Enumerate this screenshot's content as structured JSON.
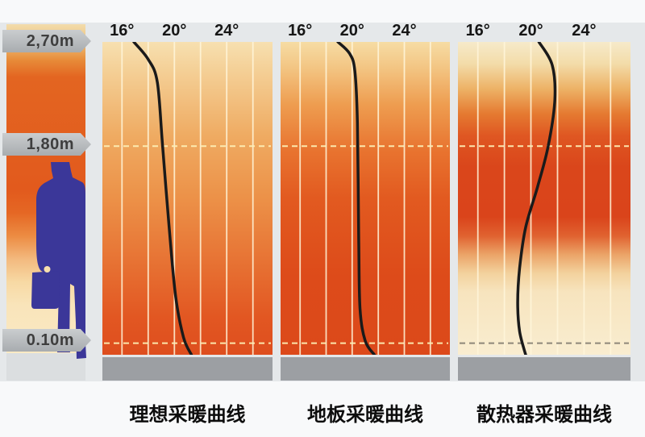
{
  "axis": {
    "tick_temps_c": [
      16,
      18,
      20,
      22,
      24,
      26
    ],
    "labeled_ticks": [
      {
        "t_c": 16,
        "label": "16°"
      },
      {
        "t_c": 20,
        "label": "20°"
      },
      {
        "t_c": 24,
        "label": "24°"
      }
    ],
    "xlim_c": [
      14.5,
      27.5
    ],
    "height_range_m": [
      0,
      2.7
    ]
  },
  "height_markers": [
    {
      "label": "2,70m",
      "height_m": 2.7
    },
    {
      "label": "1,80m",
      "height_m": 1.8
    },
    {
      "label": "0.10m",
      "height_m": 0.1
    }
  ],
  "person": {
    "icon": "person-with-briefcase-silhouette",
    "color": "#3B3799",
    "dot_color": "#F7DFAD"
  },
  "height_strip": {
    "gradient_stops": [
      [
        0,
        "#F2DCAC"
      ],
      [
        0.05,
        "#EFC47E"
      ],
      [
        0.11,
        "#E78A38"
      ],
      [
        0.16,
        "#E36521"
      ],
      [
        0.5,
        "#E25A1D"
      ],
      [
        0.57,
        "#E56724"
      ],
      [
        0.64,
        "#EC8B42"
      ],
      [
        0.71,
        "#F3B97E"
      ],
      [
        0.78,
        "#F7D9A4"
      ],
      [
        0.85,
        "#F9E4BA"
      ],
      [
        1,
        "#FAEAC4"
      ]
    ]
  },
  "colors": {
    "curve": "#1A1A1A",
    "gridline": "rgba(255,246,218,0.85)",
    "refline_pale": "rgba(252,238,180,0.95)",
    "refline_dark": "rgba(130,124,112,0.9)",
    "floor_bar": "#9C9FA3",
    "marker_text": "#3E3E3E",
    "background_main": "#E5E8EA"
  },
  "chart_data": [
    {
      "type": "line",
      "title": "理想采暖曲线",
      "x_tick_labels": [
        "16°",
        "20°",
        "24°"
      ],
      "xlim": [
        14.5,
        27.5
      ],
      "ylim": [
        0,
        2.7
      ],
      "reflines": [
        {
          "height_m": 1.8,
          "style": "pale"
        },
        {
          "height_m": 0.1,
          "style": "pale"
        }
      ],
      "gradient_stops": [
        [
          0,
          "#F7E0B0"
        ],
        [
          0.1,
          "#F4CE94"
        ],
        [
          0.3,
          "#EFAB62"
        ],
        [
          0.5,
          "#EC9148"
        ],
        [
          0.7,
          "#E77334"
        ],
        [
          0.88,
          "#E25722"
        ],
        [
          1,
          "#DE4E1E"
        ]
      ],
      "curve_points_h_t": [
        [
          2.7,
          16.9
        ],
        [
          2.55,
          18.0
        ],
        [
          2.35,
          18.7
        ],
        [
          1.8,
          19.1
        ],
        [
          1.1,
          19.6
        ],
        [
          0.5,
          20.1
        ],
        [
          0.15,
          20.7
        ],
        [
          0.0,
          21.3
        ]
      ]
    },
    {
      "type": "line",
      "title": "地板采暖曲线",
      "x_tick_labels": [
        "16°",
        "20°",
        "24°"
      ],
      "xlim": [
        14.5,
        27.5
      ],
      "ylim": [
        0,
        2.7
      ],
      "reflines": [
        {
          "height_m": 1.8,
          "style": "pale"
        },
        {
          "height_m": 0.1,
          "style": "pale"
        }
      ],
      "gradient_stops": [
        [
          0,
          "#F6DCA4"
        ],
        [
          0.08,
          "#F3C684"
        ],
        [
          0.2,
          "#EE9D50"
        ],
        [
          0.35,
          "#E8732F"
        ],
        [
          0.5,
          "#E25A20"
        ],
        [
          0.75,
          "#DD4B1A"
        ],
        [
          1,
          "#DC491A"
        ]
      ],
      "curve_points_h_t": [
        [
          2.7,
          18.9
        ],
        [
          2.6,
          19.8
        ],
        [
          2.45,
          20.2
        ],
        [
          2.0,
          20.4
        ],
        [
          1.0,
          20.5
        ],
        [
          0.4,
          20.6
        ],
        [
          0.12,
          21.0
        ],
        [
          0.0,
          21.7
        ]
      ]
    },
    {
      "type": "line",
      "title": "散热器采暖曲线",
      "x_tick_labels": [
        "16°",
        "20°",
        "24°"
      ],
      "xlim": [
        14.5,
        27.5
      ],
      "ylim": [
        0,
        2.7
      ],
      "reflines": [
        {
          "height_m": 1.8,
          "style": "pale"
        },
        {
          "height_m": 0.1,
          "style": "dark"
        }
      ],
      "gradient_stops": [
        [
          0,
          "#F6EACA"
        ],
        [
          0.07,
          "#F3DCA9"
        ],
        [
          0.15,
          "#EDB266"
        ],
        [
          0.23,
          "#E57A31"
        ],
        [
          0.3,
          "#DF5722"
        ],
        [
          0.4,
          "#DA461B"
        ],
        [
          0.56,
          "#DA441B"
        ],
        [
          0.62,
          "#E06230"
        ],
        [
          0.68,
          "#EBA468"
        ],
        [
          0.74,
          "#F3D29E"
        ],
        [
          0.8,
          "#F7E4BE"
        ],
        [
          1,
          "#F9EDD0"
        ]
      ],
      "curve_points_h_t": [
        [
          2.7,
          20.6
        ],
        [
          2.5,
          21.6
        ],
        [
          2.2,
          21.8
        ],
        [
          1.8,
          21.3
        ],
        [
          1.45,
          20.5
        ],
        [
          1.1,
          19.6
        ],
        [
          0.75,
          19.15
        ],
        [
          0.45,
          19.0
        ],
        [
          0.2,
          19.15
        ],
        [
          0.0,
          19.6
        ]
      ]
    }
  ]
}
